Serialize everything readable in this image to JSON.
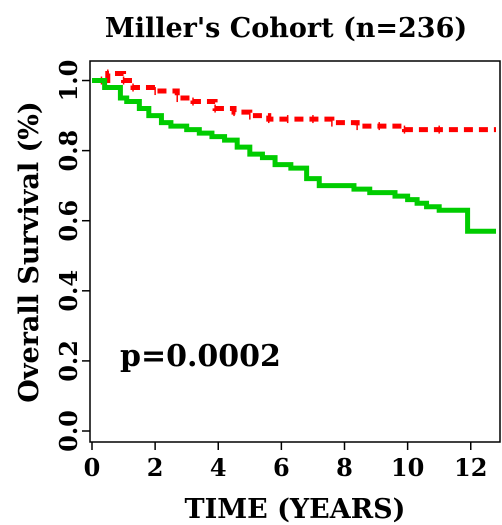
{
  "chart_data": {
    "type": "line",
    "title": "Miller's Cohort (n=236)",
    "xlabel": "TIME (YEARS)",
    "ylabel": "Overall Survival (%)",
    "xlim": [
      0,
      12.8
    ],
    "ylim": [
      0,
      1.05
    ],
    "xticks": [
      "0",
      "2",
      "4",
      "6",
      "8",
      "10",
      "12"
    ],
    "xtick_values": [
      0,
      2,
      4,
      6,
      8,
      10,
      12
    ],
    "yticks": [
      "0.0",
      "0.2",
      "0.4",
      "0.6",
      "0.8",
      "1.0"
    ],
    "ytick_values": [
      0.0,
      0.2,
      0.4,
      0.6,
      0.8,
      1.0
    ],
    "annotation": "p=0.0002",
    "grid": false,
    "series": [
      {
        "color": "#ff0000",
        "style": "dashed",
        "x": [
          0,
          0.3,
          0.5,
          1.0,
          1.3,
          2.0,
          2.7,
          3.2,
          3.9,
          4.5,
          5.0,
          5.6,
          6.2,
          7.0,
          7.6,
          8.4,
          9.1,
          9.9,
          11.0,
          12.8
        ],
        "y": [
          1.0,
          1.0,
          1.02,
          1.0,
          0.98,
          0.97,
          0.95,
          0.94,
          0.92,
          0.91,
          0.9,
          0.89,
          0.89,
          0.89,
          0.88,
          0.87,
          0.87,
          0.86,
          0.86,
          0.86
        ]
      },
      {
        "color": "#00cc00",
        "style": "solid",
        "x": [
          0,
          0.4,
          0.9,
          1.1,
          1.5,
          1.8,
          2.2,
          2.5,
          3.0,
          3.4,
          3.8,
          4.2,
          4.6,
          5.0,
          5.4,
          5.8,
          6.3,
          6.8,
          7.2,
          7.8,
          8.3,
          8.8,
          9.3,
          9.6,
          10.0,
          10.3,
          10.6,
          11.0,
          11.5,
          11.9,
          12.8
        ],
        "y": [
          1.0,
          0.98,
          0.95,
          0.94,
          0.92,
          0.9,
          0.88,
          0.87,
          0.86,
          0.85,
          0.84,
          0.83,
          0.81,
          0.79,
          0.78,
          0.76,
          0.75,
          0.72,
          0.7,
          0.7,
          0.69,
          0.68,
          0.68,
          0.67,
          0.66,
          0.65,
          0.64,
          0.63,
          0.63,
          0.57,
          0.57
        ]
      }
    ]
  }
}
